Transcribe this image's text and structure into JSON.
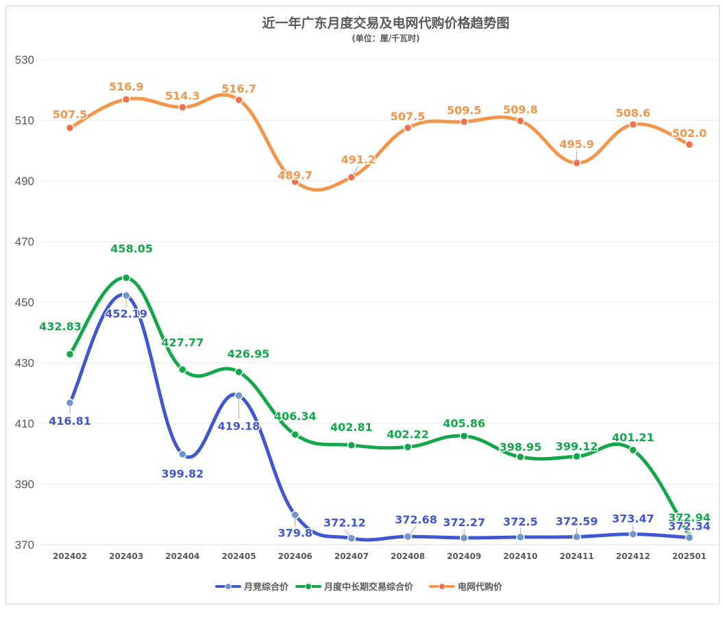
{
  "chart_data": {
    "type": "line",
    "title": "近一年广东月度交易及电网代购价格趋势图",
    "subtitle": "(单位：厘/千瓦时)",
    "categories": [
      "202402",
      "202403",
      "202404",
      "202405",
      "202406",
      "202407",
      "202408",
      "202409",
      "202410",
      "202411",
      "202412",
      "202501"
    ],
    "ylim": [
      370,
      530
    ],
    "yticks": [
      370,
      390,
      410,
      430,
      450,
      470,
      490,
      510,
      530
    ],
    "xlabel": "",
    "ylabel": "",
    "grid": true,
    "legend_position": "bottom",
    "series": [
      {
        "name": "月竞综合价",
        "color": "#3f57d3",
        "marker_color": "#6b93d6",
        "values": [
          416.81,
          452.19,
          399.82,
          419.18,
          379.8,
          372.12,
          372.68,
          372.27,
          372.5,
          372.59,
          373.47,
          372.34
        ],
        "labels": [
          "416.81",
          "452.19",
          "399.82",
          "419.18",
          "379.8",
          "372.12",
          "372.68",
          "372.27",
          "372.5",
          "372.59",
          "373.47",
          "372.34"
        ]
      },
      {
        "name": "月度中长期交易综合价",
        "color": "#12a849",
        "marker_color": "#12a849",
        "values": [
          432.83,
          458.05,
          427.77,
          426.95,
          406.34,
          402.81,
          402.22,
          405.86,
          398.95,
          399.12,
          401.21,
          372.94
        ],
        "labels": [
          "432.83",
          "458.05",
          "427.77",
          "426.95",
          "406.34",
          "402.81",
          "402.22",
          "405.86",
          "398.95",
          "399.12",
          "401.21",
          "372.94"
        ]
      },
      {
        "name": "电网代购价",
        "color": "#f4954a",
        "marker_color": "#f2714b",
        "values": [
          507.5,
          516.9,
          514.3,
          516.7,
          489.7,
          491.2,
          507.5,
          509.5,
          509.8,
          495.9,
          508.6,
          502.0
        ],
        "labels": [
          "507.5",
          "516.9",
          "514.3",
          "516.7",
          "489.7",
          "491.2",
          "507.5",
          "509.5",
          "509.8",
          "495.9",
          "508.6",
          "502.0"
        ]
      }
    ]
  }
}
